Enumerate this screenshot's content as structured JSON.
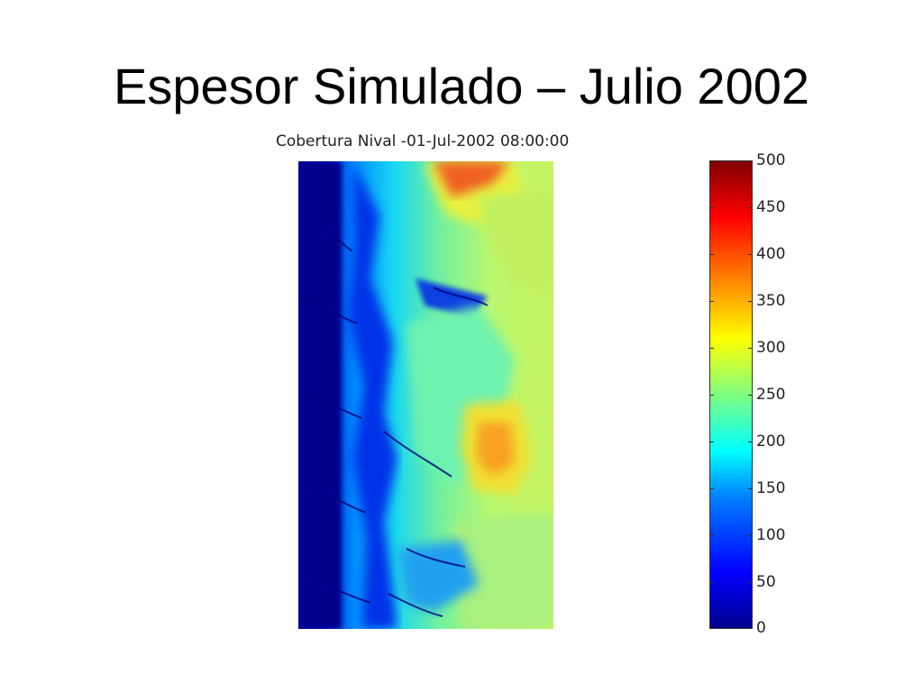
{
  "slide": {
    "title": "Espesor Simulado – Julio 2002"
  },
  "chart_data": {
    "type": "heatmap",
    "title": "Cobertura Nival -01-Jul-2002 08:00:00",
    "colorbar": {
      "colormap": "jet",
      "range": [
        0,
        500
      ],
      "ticks": [
        0,
        50,
        100,
        150,
        200,
        250,
        300,
        350,
        400,
        450,
        500
      ],
      "tick_labels": [
        "0",
        "50",
        "100",
        "150",
        "200",
        "250",
        "300",
        "350",
        "400",
        "450",
        "500"
      ]
    },
    "regions": [
      {
        "area": "west strip",
        "value_range": [
          20,
          60
        ]
      },
      {
        "area": "west-central valleys",
        "value_range": [
          80,
          180
        ]
      },
      {
        "area": "central",
        "value_range": [
          170,
          250
        ]
      },
      {
        "area": "east",
        "value_range": [
          230,
          300
        ]
      },
      {
        "area": "east-central ridges",
        "value_range": [
          300,
          380
        ]
      },
      {
        "area": "north ridges",
        "value_range": [
          320,
          450
        ]
      },
      {
        "area": "southeast",
        "value_range": [
          190,
          260
        ]
      }
    ]
  }
}
